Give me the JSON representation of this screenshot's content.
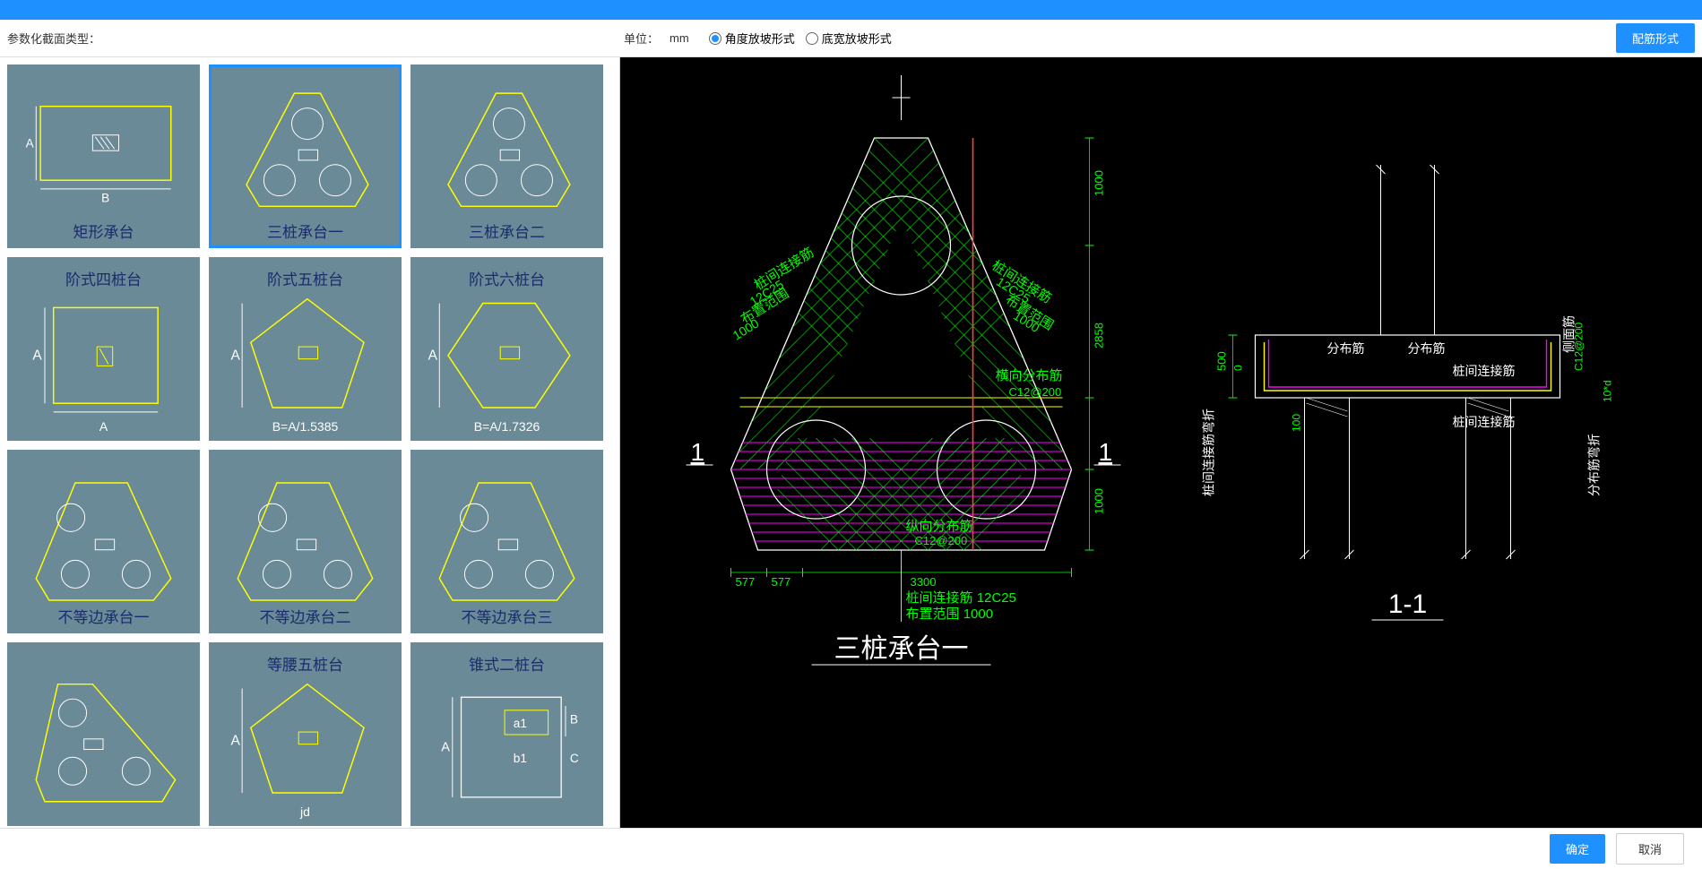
{
  "toolbar": {
    "section_label": "参数化截面类型：",
    "unit_label": "单位：",
    "unit_value": "mm",
    "slope_angle_label": "角度放坡形式",
    "slope_width_label": "底宽放坡形式",
    "selected_slope": "angle",
    "rebar_form_btn": "配筋形式"
  },
  "thumbnails": [
    {
      "id": "rect-cap",
      "title": "矩形承台",
      "title_pos": "bottom",
      "type": "rect",
      "sublabel": ""
    },
    {
      "id": "tri-cap-1",
      "title": "三桩承台一",
      "title_pos": "bottom",
      "type": "tri3",
      "selected": true,
      "sublabel": ""
    },
    {
      "id": "tri-cap-2",
      "title": "三桩承台二",
      "title_pos": "bottom",
      "type": "tri3b",
      "sublabel": ""
    },
    {
      "id": "step-4",
      "title": "阶式四桩台",
      "title_pos": "top",
      "type": "square4",
      "sublabel": "A"
    },
    {
      "id": "step-5",
      "title": "阶式五桩台",
      "title_pos": "top",
      "type": "penta5",
      "sublabel": "B=A/1.5385"
    },
    {
      "id": "step-6",
      "title": "阶式六桩台",
      "title_pos": "top",
      "type": "hexa6",
      "sublabel": "B=A/1.7326"
    },
    {
      "id": "uneq-1",
      "title": "不等边承台一",
      "title_pos": "bottom",
      "type": "tri3c",
      "sublabel": ""
    },
    {
      "id": "uneq-2",
      "title": "不等边承台二",
      "title_pos": "bottom",
      "type": "tri3c",
      "sublabel": ""
    },
    {
      "id": "uneq-3",
      "title": "不等边承台三",
      "title_pos": "bottom",
      "type": "tri3c",
      "sublabel": ""
    },
    {
      "id": "iso-4",
      "title": "",
      "title_pos": "top",
      "type": "tri3d",
      "sublabel": ""
    },
    {
      "id": "iso-5",
      "title": "等腰五桩台",
      "title_pos": "top",
      "type": "penta5b",
      "sublabel": "jd"
    },
    {
      "id": "cone-2",
      "title": "锥式二桩台",
      "title_pos": "top",
      "type": "cone2",
      "sublabel": ""
    }
  ],
  "diagram": {
    "plan_title": "三桩承台一",
    "section_title": "1-1",
    "section_marks": "1",
    "colors": {
      "bg": "#000000",
      "outline": "#ffffff",
      "hatch_green": "#00ff00",
      "hatch_magenta": "#ff00ff",
      "text_green": "#00ff00",
      "text_white": "#ffffff",
      "yellow": "#ffff00",
      "red": "#ff4040"
    },
    "labels": {
      "pile_conn": "桩间连接筋",
      "pile_conn_spec": "12C25",
      "range": "布置范围",
      "range_val": "1000",
      "horiz_dist": "横向分布筋",
      "horiz_spec": "C12@200",
      "vert_dist": "纵向分布筋",
      "vert_spec": "C12@200",
      "dist_bar": "分布筋",
      "side_bar": "侧面筋",
      "conn_bend": "桩间连接筋弯折",
      "dist_bend": "分布筋弯折",
      "pile_conn_bar": "桩间连接筋",
      "d10": "10*d"
    },
    "dims": {
      "d1000_top": "1000",
      "d500": "500",
      "d2858": "2858",
      "d1000_bot": "1000",
      "d577a": "577",
      "d577b": "577",
      "d3300": "3300",
      "d100": "100",
      "d0": "0"
    }
  },
  "footer": {
    "ok": "确定",
    "cancel": "取消"
  }
}
